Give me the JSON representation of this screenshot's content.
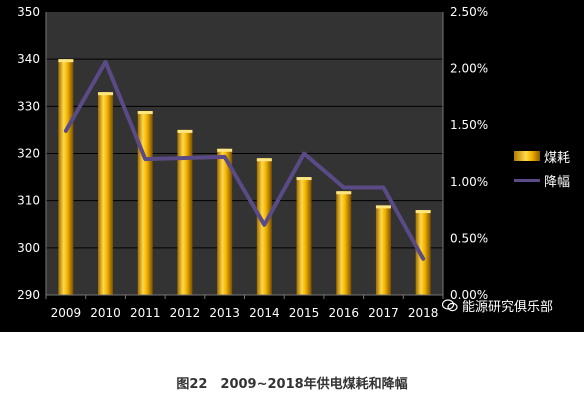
{
  "chart_data": {
    "type": "bar",
    "categories": [
      "2009",
      "2010",
      "2011",
      "2012",
      "2013",
      "2014",
      "2015",
      "2016",
      "2017",
      "2018"
    ],
    "series": [
      {
        "name": "煤耗",
        "type": "bar",
        "axis": "left",
        "values": [
          340,
          333,
          329,
          325,
          321,
          319,
          315,
          312,
          309,
          308
        ],
        "color": "#f5b800"
      },
      {
        "name": "降幅",
        "type": "line",
        "axis": "right",
        "values": [
          0.0145,
          0.0206,
          0.012,
          0.0121,
          0.0122,
          0.0062,
          0.0125,
          0.0095,
          0.0095,
          0.0032
        ],
        "color": "#5a4a86"
      }
    ],
    "y_left": {
      "min": 290,
      "max": 350,
      "ticks": [
        "290",
        "300",
        "310",
        "320",
        "330",
        "340",
        "350"
      ]
    },
    "y_right": {
      "min": 0,
      "max": 0.025,
      "ticks": [
        "0.00%",
        "0.50%",
        "1.00%",
        "1.50%",
        "2.00%",
        "2.50%"
      ]
    },
    "grid": true,
    "legend": "right",
    "background": "#000000",
    "plot_background": "#333333"
  },
  "watermark": "能源研究俱乐部",
  "caption": "图22　2009~2018年供电煤耗和降幅"
}
